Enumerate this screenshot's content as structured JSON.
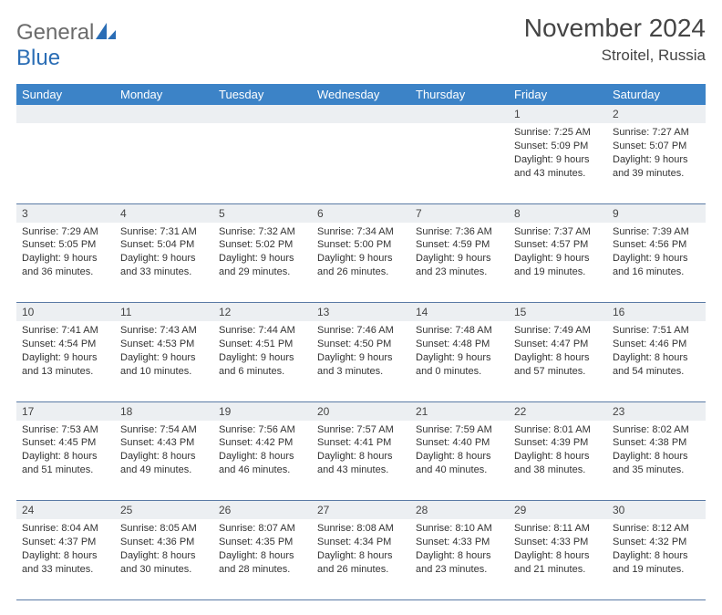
{
  "logo": {
    "general": "General",
    "blue": "Blue"
  },
  "title": "November 2024",
  "location": "Stroitel, Russia",
  "header_bg": "#3c83c7",
  "daynum_bg": "#eceff2",
  "divider_color": "#5a7aa5",
  "weekdays": [
    "Sunday",
    "Monday",
    "Tuesday",
    "Wednesday",
    "Thursday",
    "Friday",
    "Saturday"
  ],
  "weeks": [
    [
      {
        "n": "",
        "sunrise": "",
        "sunset": "",
        "d1": "",
        "d2": ""
      },
      {
        "n": "",
        "sunrise": "",
        "sunset": "",
        "d1": "",
        "d2": ""
      },
      {
        "n": "",
        "sunrise": "",
        "sunset": "",
        "d1": "",
        "d2": ""
      },
      {
        "n": "",
        "sunrise": "",
        "sunset": "",
        "d1": "",
        "d2": ""
      },
      {
        "n": "",
        "sunrise": "",
        "sunset": "",
        "d1": "",
        "d2": ""
      },
      {
        "n": "1",
        "sunrise": "Sunrise: 7:25 AM",
        "sunset": "Sunset: 5:09 PM",
        "d1": "Daylight: 9 hours",
        "d2": "and 43 minutes."
      },
      {
        "n": "2",
        "sunrise": "Sunrise: 7:27 AM",
        "sunset": "Sunset: 5:07 PM",
        "d1": "Daylight: 9 hours",
        "d2": "and 39 minutes."
      }
    ],
    [
      {
        "n": "3",
        "sunrise": "Sunrise: 7:29 AM",
        "sunset": "Sunset: 5:05 PM",
        "d1": "Daylight: 9 hours",
        "d2": "and 36 minutes."
      },
      {
        "n": "4",
        "sunrise": "Sunrise: 7:31 AM",
        "sunset": "Sunset: 5:04 PM",
        "d1": "Daylight: 9 hours",
        "d2": "and 33 minutes."
      },
      {
        "n": "5",
        "sunrise": "Sunrise: 7:32 AM",
        "sunset": "Sunset: 5:02 PM",
        "d1": "Daylight: 9 hours",
        "d2": "and 29 minutes."
      },
      {
        "n": "6",
        "sunrise": "Sunrise: 7:34 AM",
        "sunset": "Sunset: 5:00 PM",
        "d1": "Daylight: 9 hours",
        "d2": "and 26 minutes."
      },
      {
        "n": "7",
        "sunrise": "Sunrise: 7:36 AM",
        "sunset": "Sunset: 4:59 PM",
        "d1": "Daylight: 9 hours",
        "d2": "and 23 minutes."
      },
      {
        "n": "8",
        "sunrise": "Sunrise: 7:37 AM",
        "sunset": "Sunset: 4:57 PM",
        "d1": "Daylight: 9 hours",
        "d2": "and 19 minutes."
      },
      {
        "n": "9",
        "sunrise": "Sunrise: 7:39 AM",
        "sunset": "Sunset: 4:56 PM",
        "d1": "Daylight: 9 hours",
        "d2": "and 16 minutes."
      }
    ],
    [
      {
        "n": "10",
        "sunrise": "Sunrise: 7:41 AM",
        "sunset": "Sunset: 4:54 PM",
        "d1": "Daylight: 9 hours",
        "d2": "and 13 minutes."
      },
      {
        "n": "11",
        "sunrise": "Sunrise: 7:43 AM",
        "sunset": "Sunset: 4:53 PM",
        "d1": "Daylight: 9 hours",
        "d2": "and 10 minutes."
      },
      {
        "n": "12",
        "sunrise": "Sunrise: 7:44 AM",
        "sunset": "Sunset: 4:51 PM",
        "d1": "Daylight: 9 hours",
        "d2": "and 6 minutes."
      },
      {
        "n": "13",
        "sunrise": "Sunrise: 7:46 AM",
        "sunset": "Sunset: 4:50 PM",
        "d1": "Daylight: 9 hours",
        "d2": "and 3 minutes."
      },
      {
        "n": "14",
        "sunrise": "Sunrise: 7:48 AM",
        "sunset": "Sunset: 4:48 PM",
        "d1": "Daylight: 9 hours",
        "d2": "and 0 minutes."
      },
      {
        "n": "15",
        "sunrise": "Sunrise: 7:49 AM",
        "sunset": "Sunset: 4:47 PM",
        "d1": "Daylight: 8 hours",
        "d2": "and 57 minutes."
      },
      {
        "n": "16",
        "sunrise": "Sunrise: 7:51 AM",
        "sunset": "Sunset: 4:46 PM",
        "d1": "Daylight: 8 hours",
        "d2": "and 54 minutes."
      }
    ],
    [
      {
        "n": "17",
        "sunrise": "Sunrise: 7:53 AM",
        "sunset": "Sunset: 4:45 PM",
        "d1": "Daylight: 8 hours",
        "d2": "and 51 minutes."
      },
      {
        "n": "18",
        "sunrise": "Sunrise: 7:54 AM",
        "sunset": "Sunset: 4:43 PM",
        "d1": "Daylight: 8 hours",
        "d2": "and 49 minutes."
      },
      {
        "n": "19",
        "sunrise": "Sunrise: 7:56 AM",
        "sunset": "Sunset: 4:42 PM",
        "d1": "Daylight: 8 hours",
        "d2": "and 46 minutes."
      },
      {
        "n": "20",
        "sunrise": "Sunrise: 7:57 AM",
        "sunset": "Sunset: 4:41 PM",
        "d1": "Daylight: 8 hours",
        "d2": "and 43 minutes."
      },
      {
        "n": "21",
        "sunrise": "Sunrise: 7:59 AM",
        "sunset": "Sunset: 4:40 PM",
        "d1": "Daylight: 8 hours",
        "d2": "and 40 minutes."
      },
      {
        "n": "22",
        "sunrise": "Sunrise: 8:01 AM",
        "sunset": "Sunset: 4:39 PM",
        "d1": "Daylight: 8 hours",
        "d2": "and 38 minutes."
      },
      {
        "n": "23",
        "sunrise": "Sunrise: 8:02 AM",
        "sunset": "Sunset: 4:38 PM",
        "d1": "Daylight: 8 hours",
        "d2": "and 35 minutes."
      }
    ],
    [
      {
        "n": "24",
        "sunrise": "Sunrise: 8:04 AM",
        "sunset": "Sunset: 4:37 PM",
        "d1": "Daylight: 8 hours",
        "d2": "and 33 minutes."
      },
      {
        "n": "25",
        "sunrise": "Sunrise: 8:05 AM",
        "sunset": "Sunset: 4:36 PM",
        "d1": "Daylight: 8 hours",
        "d2": "and 30 minutes."
      },
      {
        "n": "26",
        "sunrise": "Sunrise: 8:07 AM",
        "sunset": "Sunset: 4:35 PM",
        "d1": "Daylight: 8 hours",
        "d2": "and 28 minutes."
      },
      {
        "n": "27",
        "sunrise": "Sunrise: 8:08 AM",
        "sunset": "Sunset: 4:34 PM",
        "d1": "Daylight: 8 hours",
        "d2": "and 26 minutes."
      },
      {
        "n": "28",
        "sunrise": "Sunrise: 8:10 AM",
        "sunset": "Sunset: 4:33 PM",
        "d1": "Daylight: 8 hours",
        "d2": "and 23 minutes."
      },
      {
        "n": "29",
        "sunrise": "Sunrise: 8:11 AM",
        "sunset": "Sunset: 4:33 PM",
        "d1": "Daylight: 8 hours",
        "d2": "and 21 minutes."
      },
      {
        "n": "30",
        "sunrise": "Sunrise: 8:12 AM",
        "sunset": "Sunset: 4:32 PM",
        "d1": "Daylight: 8 hours",
        "d2": "and 19 minutes."
      }
    ]
  ]
}
